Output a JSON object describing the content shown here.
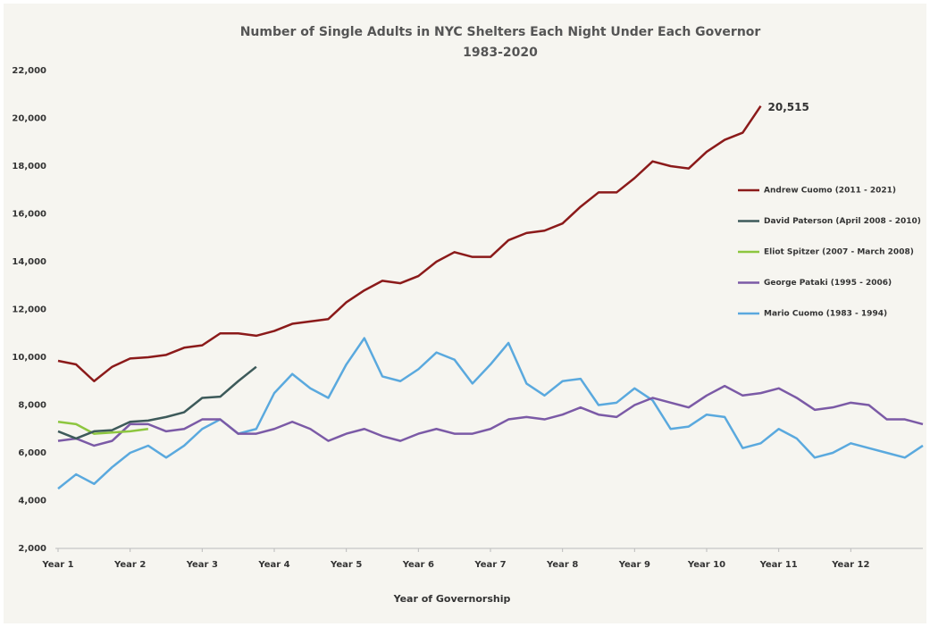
{
  "chart_data": {
    "type": "line",
    "title": "Number of Single Adults in NYC Shelters Each Night Under Each Governor",
    "subtitle": "1983-2020",
    "x_label": "Year of Governorship",
    "x": [
      1,
      1.25,
      1.5,
      1.75,
      2,
      2.25,
      2.5,
      2.75,
      3,
      3.25,
      3.5,
      3.75,
      4,
      4.25,
      4.5,
      4.75,
      5,
      5.25,
      5.5,
      5.75,
      6,
      6.25,
      6.5,
      6.75,
      7,
      7.25,
      7.5,
      7.75,
      8,
      8.25,
      8.5,
      8.75,
      9,
      9.25,
      9.5,
      9.75,
      10,
      10.25,
      10.5,
      10.75,
      11,
      11.25,
      11.5,
      11.75,
      12,
      12.25,
      12.5,
      12.75,
      13
    ],
    "xlim": [
      1,
      13
    ],
    "xticks": [
      {
        "value": 1,
        "label": "Year 1"
      },
      {
        "value": 2,
        "label": "Year 2"
      },
      {
        "value": 3,
        "label": "Year 3"
      },
      {
        "value": 4,
        "label": "Year 4"
      },
      {
        "value": 5,
        "label": "Year 5"
      },
      {
        "value": 6,
        "label": "Year 6"
      },
      {
        "value": 7,
        "label": "Year 7"
      },
      {
        "value": 8,
        "label": "Year 8"
      },
      {
        "value": 9,
        "label": "Year 9"
      },
      {
        "value": 10,
        "label": "Year 10"
      },
      {
        "value": 11,
        "label": "Year 11"
      },
      {
        "value": 12,
        "label": "Year 12"
      }
    ],
    "ylim": [
      2000,
      22000
    ],
    "yticks": [
      {
        "value": 2000,
        "label": "2,000"
      },
      {
        "value": 4000,
        "label": "4,000"
      },
      {
        "value": 6000,
        "label": "6,000"
      },
      {
        "value": 8000,
        "label": "8,000"
      },
      {
        "value": 10000,
        "label": "10,000"
      },
      {
        "value": 12000,
        "label": "12,000"
      },
      {
        "value": 14000,
        "label": "14,000"
      },
      {
        "value": 16000,
        "label": "16,000"
      },
      {
        "value": 18000,
        "label": "18,000"
      },
      {
        "value": 20000,
        "label": "20,000"
      },
      {
        "value": 22000,
        "label": "22,000"
      }
    ],
    "grid": false,
    "legend": "right",
    "series": [
      {
        "name": "Andrew Cuomo (2011 - 2021)",
        "color": "#8b1a1a",
        "values": [
          9850,
          9700,
          9000,
          9600,
          9950,
          10000,
          10100,
          10400,
          10500,
          11000,
          11000,
          10900,
          11100,
          11400,
          11500,
          11600,
          12300,
          12800,
          13200,
          13100,
          13400,
          14000,
          14400,
          14200,
          14200,
          14900,
          15200,
          15300,
          15600,
          16300,
          16900,
          16900,
          17500,
          18200,
          18000,
          17900,
          18600,
          19100,
          19400,
          20515,
          null,
          null,
          null,
          null,
          null,
          null,
          null,
          null,
          null
        ],
        "value_labels": [
          null,
          null,
          null,
          null,
          null,
          null,
          null,
          null,
          null,
          null,
          null,
          null,
          null,
          null,
          null,
          null,
          null,
          null,
          null,
          null,
          null,
          null,
          null,
          null,
          null,
          null,
          null,
          null,
          null,
          null,
          null,
          null,
          null,
          null,
          null,
          null,
          null,
          null,
          null,
          "20,515",
          null,
          null,
          null,
          null,
          null,
          null,
          null,
          null,
          null
        ]
      },
      {
        "name": "David Paterson (April 2008 - 2010)",
        "color": "#3d5a5a",
        "values": [
          6900,
          6600,
          6900,
          6950,
          7300,
          7350,
          7500,
          7700,
          8300,
          8350,
          9000,
          9600,
          null,
          null,
          null,
          null,
          null,
          null,
          null,
          null,
          null,
          null,
          null,
          null,
          null,
          null,
          null,
          null,
          null,
          null,
          null,
          null,
          null,
          null,
          null,
          null,
          null,
          null,
          null,
          null,
          null,
          null,
          null,
          null,
          null,
          null,
          null,
          null,
          null
        ]
      },
      {
        "name": "Eliot Spitzer (2007 - March 2008)",
        "color": "#8dc63f",
        "values": [
          7300,
          7200,
          6800,
          6850,
          6900,
          7000,
          null,
          null,
          null,
          null,
          null,
          null,
          null,
          null,
          null,
          null,
          null,
          null,
          null,
          null,
          null,
          null,
          null,
          null,
          null,
          null,
          null,
          null,
          null,
          null,
          null,
          null,
          null,
          null,
          null,
          null,
          null,
          null,
          null,
          null,
          null,
          null,
          null,
          null,
          null,
          null,
          null,
          null,
          null
        ]
      },
      {
        "name": "George Pataki (1995 - 2006)",
        "color": "#7b5aa6",
        "values": [
          6500,
          6600,
          6300,
          6500,
          7200,
          7200,
          6900,
          7000,
          7400,
          7400,
          6800,
          6800,
          7000,
          7300,
          7000,
          6500,
          6800,
          7000,
          6700,
          6500,
          6800,
          7000,
          6800,
          6800,
          7000,
          7400,
          7500,
          7400,
          7600,
          7900,
          7600,
          7500,
          8000,
          8300,
          8100,
          7900,
          8400,
          8800,
          8400,
          8500,
          8700,
          8300,
          7800,
          7900,
          8100,
          8000,
          7400,
          7400,
          7200
        ]
      },
      {
        "name": "Mario Cuomo (1983 - 1994)",
        "color": "#5aa9de",
        "values": [
          4500,
          5100,
          4700,
          5400,
          6000,
          6300,
          5800,
          6300,
          7000,
          7400,
          6800,
          7000,
          8500,
          9300,
          8700,
          8300,
          9700,
          10800,
          9200,
          9000,
          9500,
          10200,
          9900,
          8900,
          9700,
          10600,
          8900,
          8400,
          9000,
          9100,
          8000,
          8100,
          8700,
          8200,
          7000,
          7100,
          7600,
          7500,
          6200,
          6400,
          7000,
          6600,
          5800,
          6000,
          6400,
          6200,
          6000,
          5800,
          6300
        ]
      }
    ]
  }
}
